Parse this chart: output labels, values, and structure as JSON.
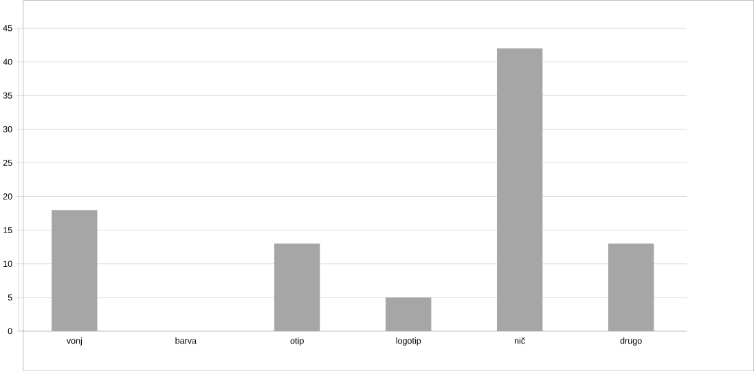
{
  "chart_data": {
    "type": "bar",
    "categories": [
      "vonj",
      "barva",
      "otip",
      "logotip",
      "nič",
      "drugo"
    ],
    "values": [
      18,
      0,
      13,
      5,
      42,
      13
    ],
    "color": "#a6a6a6",
    "ylim": [
      0,
      45
    ],
    "yticks": [
      0,
      5,
      10,
      15,
      20,
      25,
      30,
      35,
      40,
      45
    ],
    "grid": "y"
  }
}
